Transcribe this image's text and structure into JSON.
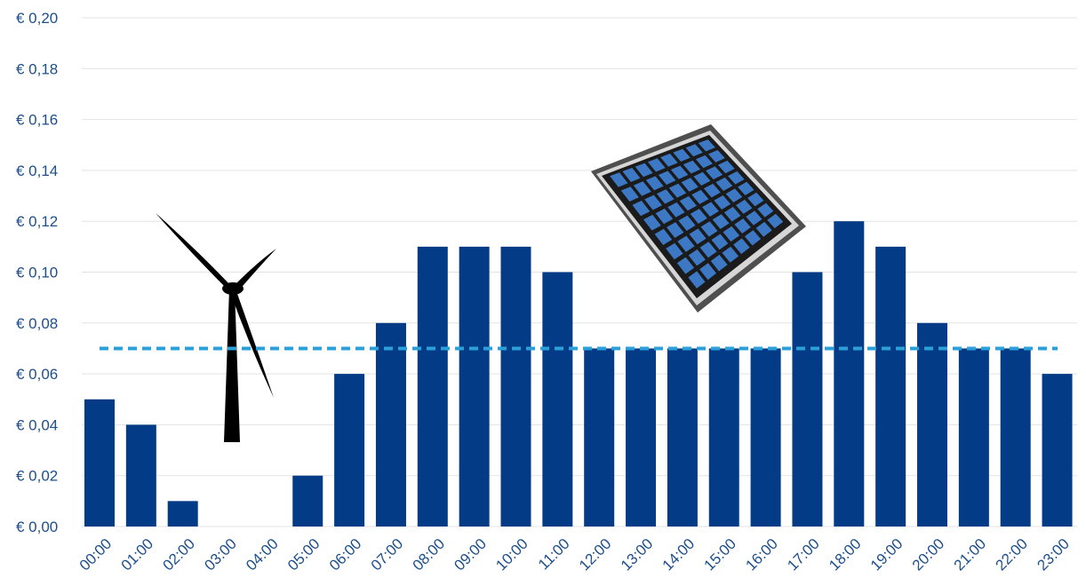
{
  "chart_data": {
    "type": "bar",
    "title": "",
    "xlabel": "",
    "ylabel": "",
    "categories": [
      "00:00",
      "01:00",
      "02:00",
      "03:00",
      "04:00",
      "05:00",
      "06:00",
      "07:00",
      "08:00",
      "09:00",
      "10:00",
      "11:00",
      "12:00",
      "13:00",
      "14:00",
      "15:00",
      "16:00",
      "17:00",
      "18:00",
      "19:00",
      "20:00",
      "21:00",
      "22:00",
      "23:00"
    ],
    "values": [
      0.05,
      0.04,
      0.01,
      0,
      0,
      0.02,
      0.06,
      0.08,
      0.11,
      0.11,
      0.11,
      0.1,
      0.07,
      0.07,
      0.07,
      0.07,
      0.07,
      0.1,
      0.12,
      0.11,
      0.08,
      0.07,
      0.07,
      0.06
    ],
    "y_ticks": [
      "€ 0,00",
      "€ 0,02",
      "€ 0,04",
      "€ 0,06",
      "€ 0,08",
      "€ 0,10",
      "€ 0,12",
      "€ 0,14",
      "€ 0,16",
      "€ 0,18",
      "€ 0,20"
    ],
    "ylim": [
      0,
      0.2
    ],
    "average_line": 0.07,
    "grid": true,
    "colors": {
      "bar": "#033b86",
      "average_line": "#2a9fd8",
      "tick_text": "#1d4f8c",
      "grid": "#e3e3e3"
    },
    "decorations": [
      "wind-turbine-icon",
      "solar-panel-icon"
    ]
  }
}
